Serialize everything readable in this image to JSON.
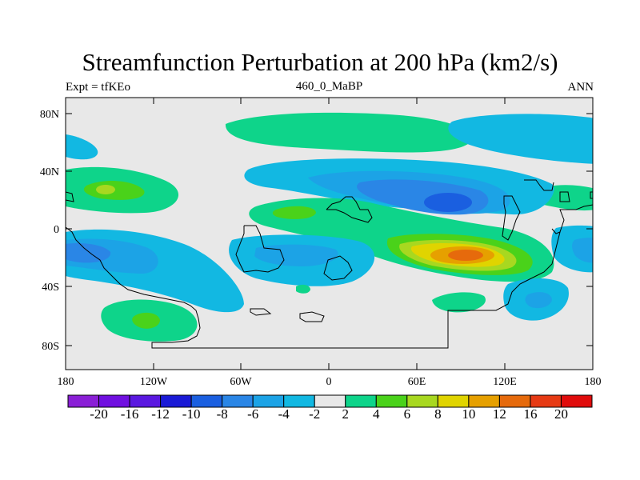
{
  "title": "Streamfunction Perturbation at 200 hPa (km2/s)",
  "subtitle_left": "Expt = tfKEo",
  "subtitle_center": "460_0_MaBP",
  "subtitle_right": "ANN",
  "axes": {
    "lat_ticks": [
      "80N",
      "40N",
      "0",
      "40S",
      "80S"
    ],
    "lon_ticks": [
      "180",
      "120W",
      "60W",
      "0",
      "60E",
      "120E",
      "180"
    ]
  },
  "colorbar": {
    "labels": [
      "-20",
      "-16",
      "-12",
      "-10",
      "-8",
      "-6",
      "-4",
      "-2",
      "2",
      "4",
      "6",
      "8",
      "10",
      "12",
      "16",
      "20"
    ],
    "colors": [
      "#8a1fd6",
      "#7010e0",
      "#5a18e0",
      "#1a1ad6",
      "#1a5fe0",
      "#2a86e6",
      "#1ca3e6",
      "#12b8e2",
      "#e8e8e8",
      "#0ed48a",
      "#4ad21a",
      "#a8d820",
      "#e0d400",
      "#e6a000",
      "#e66a0c",
      "#e63a14",
      "#e00c0c"
    ]
  },
  "colors": {
    "background": "#e8e8e8",
    "neg_light": "#12b8e2",
    "neg_mid": "#1ca3e6",
    "neg_strong": "#2a86e6",
    "neg_stronger": "#1a5fe0",
    "pos_light": "#0ed48a",
    "pos_mid": "#4ad21a",
    "pos_yellow": "#e0d400",
    "pos_orange": "#e6a000",
    "pos_red": "#e66a0c"
  }
}
